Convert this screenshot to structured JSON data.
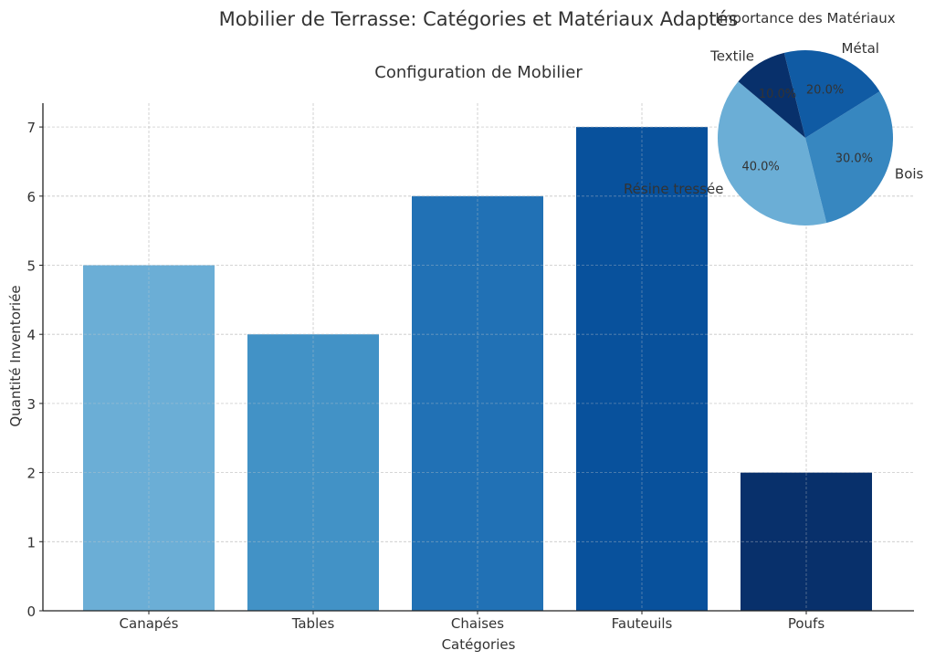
{
  "figure": {
    "suptitle": "Mobilier de Terrasse: Catégories et Matériaux Adaptés"
  },
  "chart_data": [
    {
      "type": "bar",
      "title": "Configuration de Mobilier",
      "xlabel": "Catégories",
      "ylabel": "Quantité Inventoriée",
      "categories": [
        "Canapés",
        "Tables",
        "Chaises",
        "Fauteuils",
        "Poufs"
      ],
      "values": [
        5,
        4,
        6,
        7,
        2
      ],
      "colors": [
        "#6baed6",
        "#4292c6",
        "#2171b5",
        "#08519c",
        "#08306b"
      ],
      "ylim": [
        0,
        7.35
      ],
      "yticks": [
        0,
        1,
        2,
        3,
        4,
        5,
        6,
        7
      ],
      "grid": true
    },
    {
      "type": "pie",
      "title": "Importance des Matériaux",
      "labels": [
        "Résine tressée",
        "Bois",
        "Métal",
        "Textile"
      ],
      "values": [
        40,
        30,
        20,
        10
      ],
      "pct_labels": [
        "40.0%",
        "30.0%",
        "20.0%",
        "10.0%"
      ],
      "colors": [
        "#6baed6",
        "#3787c0",
        "#105ba4",
        "#08306b"
      ]
    }
  ]
}
